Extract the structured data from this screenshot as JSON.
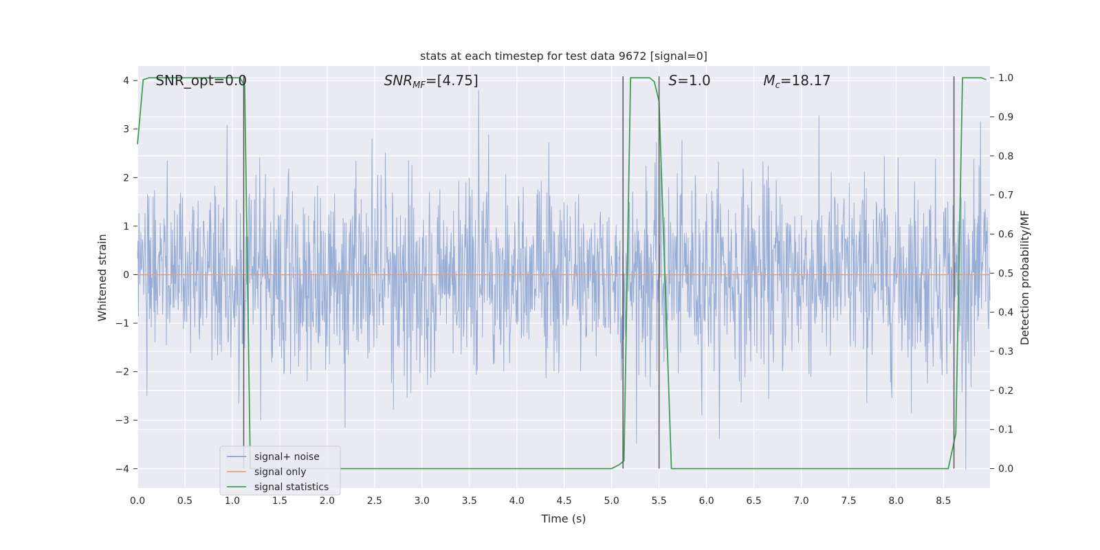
{
  "chart_data": {
    "type": "line",
    "title": "stats at each timestep for test data 9672 [signal=0]",
    "xlabel": "Time (s)",
    "ylabel": "Whitened strain",
    "y2label": "Detection probability/MF",
    "xlim": [
      0,
      8.99
    ],
    "ylim": [
      -4.4,
      4.3
    ],
    "y2lim": [
      -0.05,
      1.03
    ],
    "xticks": [
      "0.0",
      "0.5",
      "1.0",
      "1.5",
      "2.0",
      "2.5",
      "3.0",
      "3.5",
      "4.0",
      "4.5",
      "5.0",
      "5.5",
      "6.0",
      "6.5",
      "7.0",
      "7.5",
      "8.0",
      "8.5"
    ],
    "yticks": [
      "4",
      "3",
      "2",
      "1",
      "0",
      "−1",
      "−2",
      "−3",
      "−4"
    ],
    "y2ticks": [
      "1.0",
      "0.9",
      "0.8",
      "0.7",
      "0.6",
      "0.5",
      "0.4",
      "0.3",
      "0.2",
      "0.1",
      "0.0"
    ],
    "grid": true,
    "legend_position": "lower-left",
    "annotations": [
      {
        "text": "SNR_opt=0.0",
        "x": 0.19,
        "y": 4.0
      },
      {
        "text": "SNR_MF=[4.75]",
        "x": 2.6,
        "y": 4.0
      },
      {
        "text": "S=1.0",
        "x": 5.6,
        "y": 4.0
      },
      {
        "text": "M_c=18.17",
        "x": 6.6,
        "y": 4.0
      }
    ],
    "series": [
      {
        "name": "signal+ noise",
        "color": "#8fa6d1",
        "axis": "left",
        "style": "noise",
        "envelope_std": 1.0,
        "points": 1800
      },
      {
        "name": "signal only",
        "color": "#e39f7f",
        "axis": "left",
        "x": [
          0,
          8.99
        ],
        "y": [
          0,
          0
        ]
      },
      {
        "name": "signal statistics",
        "color": "#3d9f53",
        "axis": "right",
        "x": [
          0.0,
          0.06,
          0.12,
          0.5,
          1.0,
          1.08,
          1.13,
          1.19,
          1.25,
          2.0,
          3.0,
          4.0,
          5.0,
          5.08,
          5.13,
          5.2,
          5.3,
          5.4,
          5.45,
          5.5,
          5.63,
          6.0,
          7.0,
          8.0,
          8.55,
          8.63,
          8.7,
          8.9,
          8.95
        ],
        "y": [
          0.83,
          0.995,
          1.0,
          1.0,
          1.0,
          1.0,
          0.98,
          0.0,
          0.0,
          0.0,
          0.0,
          0.0,
          0.0,
          0.01,
          0.02,
          1.0,
          1.0,
          1.0,
          0.99,
          0.94,
          0.0,
          0.0,
          0.0,
          0.0,
          0.0,
          0.09,
          1.0,
          1.0,
          0.995
        ]
      }
    ],
    "vlines_x": [
      1.12,
      5.12,
      5.5,
      8.61
    ]
  }
}
